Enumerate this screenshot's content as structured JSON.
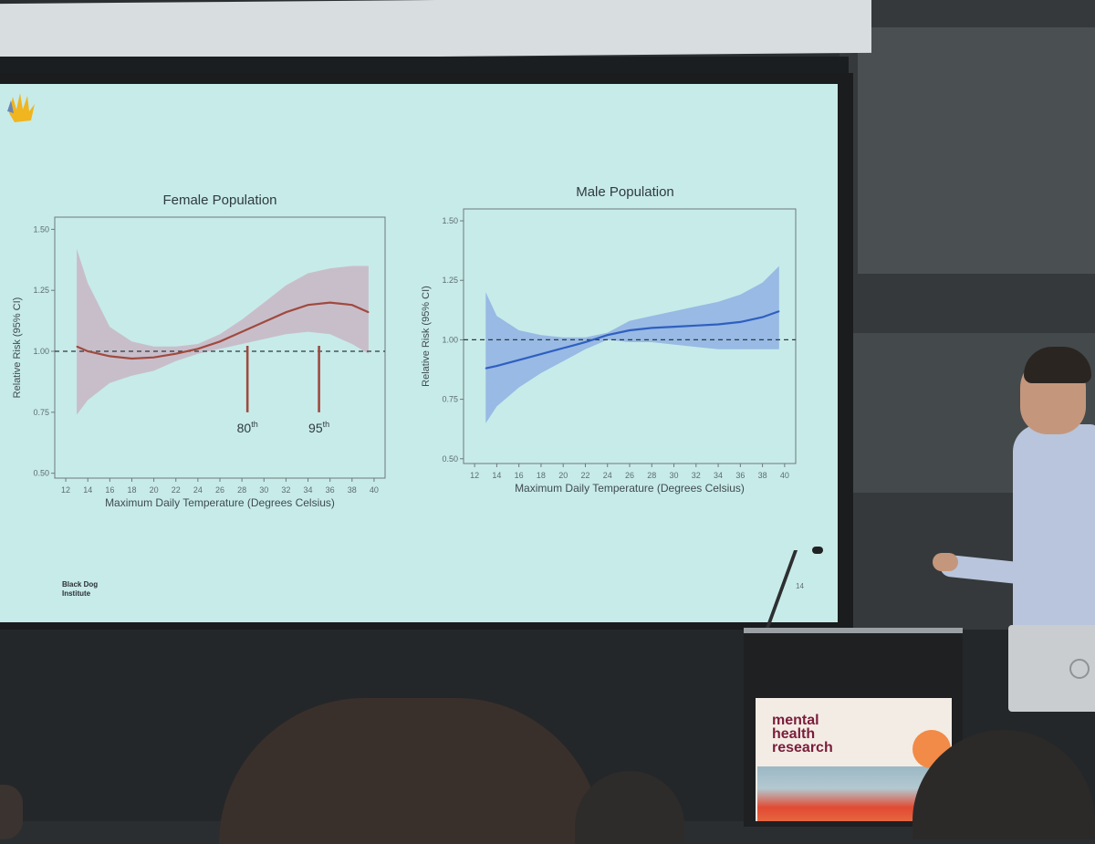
{
  "slide": {
    "page_number": "14",
    "brand": {
      "line1": "Black Dog",
      "line2": "Institute",
      "logo_icon": "hand-logo-icon"
    }
  },
  "sign": {
    "line1": "mental",
    "line2": "health",
    "line3": "research"
  },
  "colors": {
    "slide_bg": "#c7ebe9",
    "female_line": "#a04a3e",
    "female_band": "#c8b6c4",
    "male_line": "#2f5fc0",
    "male_band": "#8fb2e3"
  },
  "chart_data": [
    {
      "type": "line",
      "title": "Female Population",
      "xlabel": "Maximum Daily Temperature (Degrees Celsius)",
      "ylabel": "Relative Risk (95% CI)",
      "xlim": [
        11,
        41
      ],
      "ylim": [
        0.48,
        1.55
      ],
      "x_ticks": [
        12,
        14,
        16,
        18,
        20,
        22,
        24,
        26,
        28,
        30,
        32,
        34,
        36,
        38,
        40
      ],
      "y_ticks": [
        0.5,
        0.75,
        1.0,
        1.25,
        1.5
      ],
      "y_tick_labels": [
        "0.50",
        "0.75",
        "1.00",
        "1.25",
        "1.50"
      ],
      "reference_line": 1.0,
      "series": [
        {
          "x": [
            13,
            14,
            16,
            18,
            20,
            22,
            24,
            26,
            28,
            30,
            32,
            34,
            36,
            38,
            39.5
          ],
          "y": [
            1.02,
            1.0,
            0.98,
            0.97,
            0.975,
            0.99,
            1.01,
            1.04,
            1.08,
            1.12,
            1.16,
            1.19,
            1.2,
            1.19,
            1.16
          ],
          "lower": [
            0.74,
            0.8,
            0.87,
            0.9,
            0.92,
            0.96,
            0.99,
            1.01,
            1.03,
            1.05,
            1.07,
            1.08,
            1.07,
            1.03,
            0.99
          ],
          "upper": [
            1.42,
            1.28,
            1.1,
            1.04,
            1.02,
            1.02,
            1.03,
            1.07,
            1.13,
            1.2,
            1.27,
            1.32,
            1.34,
            1.35,
            1.35
          ]
        }
      ],
      "annotations": [
        {
          "x": 28.5,
          "label": "80",
          "suffix": "th",
          "y_top": 1.0,
          "y_bottom": 0.75
        },
        {
          "x": 35,
          "label": "95",
          "suffix": "th",
          "y_top": 1.0,
          "y_bottom": 0.75
        }
      ]
    },
    {
      "type": "line",
      "title": "Male Population",
      "xlabel": "Maximum Daily Temperature (Degrees Celsius)",
      "ylabel": "Relative Risk (95% CI)",
      "xlim": [
        11,
        41
      ],
      "ylim": [
        0.48,
        1.55
      ],
      "x_ticks": [
        12,
        14,
        16,
        18,
        20,
        22,
        24,
        26,
        28,
        30,
        32,
        34,
        36,
        38,
        40
      ],
      "y_ticks": [
        0.5,
        0.75,
        1.0,
        1.25,
        1.5
      ],
      "y_tick_labels": [
        "0.50",
        "0.75",
        "1.00",
        "1.25",
        "1.50"
      ],
      "reference_line": 1.0,
      "series": [
        {
          "x": [
            13,
            14,
            16,
            18,
            20,
            22,
            24,
            26,
            28,
            30,
            32,
            34,
            36,
            38,
            39.5
          ],
          "y": [
            0.88,
            0.89,
            0.915,
            0.94,
            0.965,
            0.99,
            1.02,
            1.04,
            1.05,
            1.055,
            1.06,
            1.065,
            1.075,
            1.095,
            1.12
          ],
          "lower": [
            0.65,
            0.72,
            0.8,
            0.86,
            0.91,
            0.96,
            1.0,
            0.99,
            0.99,
            0.98,
            0.97,
            0.96,
            0.96,
            0.96,
            0.96
          ],
          "upper": [
            1.2,
            1.1,
            1.04,
            1.02,
            1.01,
            1.01,
            1.03,
            1.08,
            1.1,
            1.12,
            1.14,
            1.16,
            1.19,
            1.24,
            1.31
          ]
        }
      ]
    }
  ]
}
